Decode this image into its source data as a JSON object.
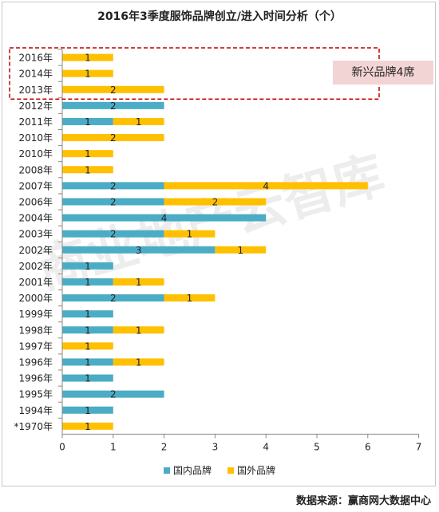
{
  "title": "2016年3季度服饰品牌创立/进入时间分析（个）",
  "callout": "新兴品牌4席",
  "source": "数据来源：赢商网大数据中心",
  "watermark": "商业地产云智库",
  "colors": {
    "domestic": "#4bacc6",
    "foreign": "#ffc000",
    "highlight": "#c00000",
    "callout_bg": "#f3d4d4"
  },
  "chart_data": {
    "type": "bar",
    "orientation": "horizontal",
    "stacked": true,
    "categories": [
      "2016年",
      "2014年",
      "2013年",
      "2012年",
      "2011年",
      "2010年",
      "2010年",
      "2008年",
      "2007年",
      "2006年",
      "2004年",
      "2003年",
      "2002年",
      "2002年",
      "2001年",
      "2000年",
      "1999年",
      "1998年",
      "1997年",
      "1996年",
      "1996年",
      "1995年",
      "1994年",
      "*1970年"
    ],
    "series": [
      {
        "name": "国内品牌",
        "values": [
          0,
          0,
          0,
          2,
          1,
          0,
          0,
          0,
          2,
          2,
          4,
          2,
          3,
          1,
          1,
          2,
          1,
          1,
          0,
          1,
          1,
          2,
          1,
          0
        ]
      },
      {
        "name": "国外品牌",
        "values": [
          1,
          1,
          2,
          0,
          1,
          2,
          1,
          1,
          4,
          2,
          0,
          1,
          1,
          0,
          1,
          1,
          0,
          1,
          1,
          1,
          0,
          0,
          0,
          1
        ]
      }
    ],
    "xlim": [
      0,
      7
    ],
    "xticks": [
      "0",
      "1",
      "2",
      "3",
      "4",
      "5",
      "6",
      "7"
    ],
    "grid": false,
    "legend": "bottom",
    "highlight": {
      "categories": [
        "2016年",
        "2014年",
        "2013年"
      ]
    }
  }
}
